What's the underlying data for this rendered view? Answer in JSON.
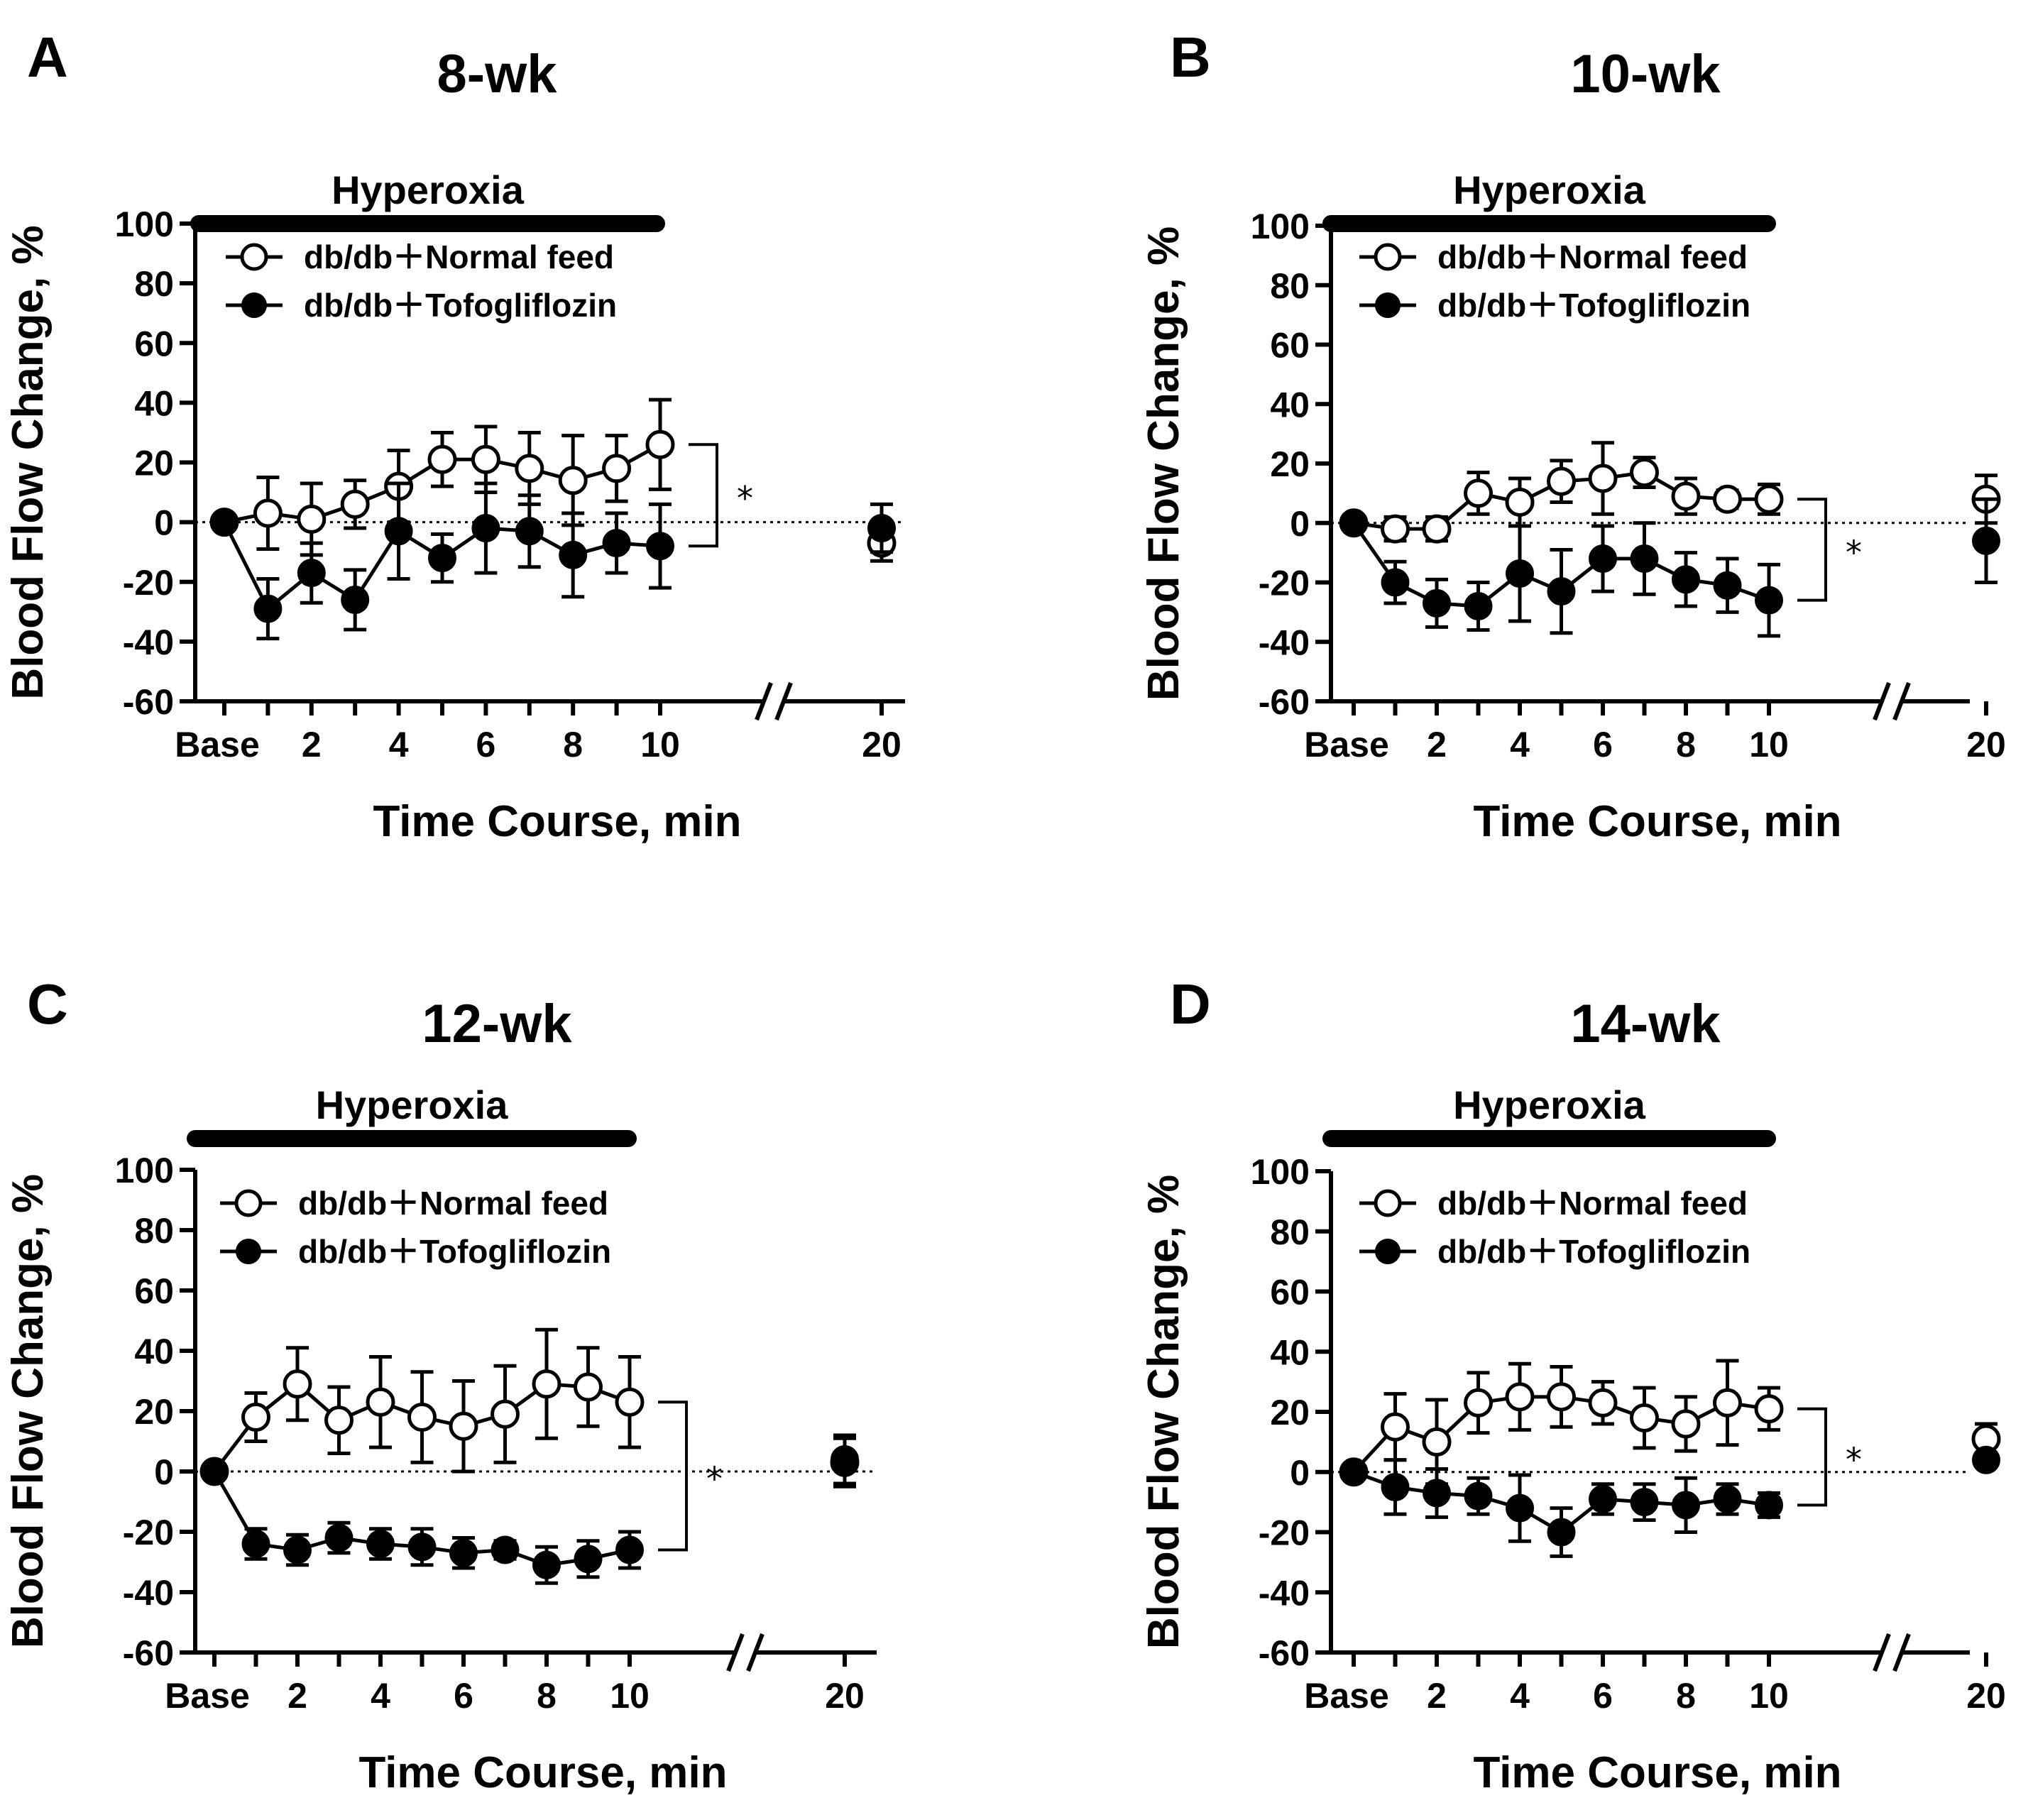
{
  "chart_data": [
    {
      "type": "line",
      "panel": "A",
      "title": "8-wk",
      "band_label": "Hyperoxia",
      "xlabel": "Time Course, min",
      "ylabel": "Blood Flow Change, %",
      "ylim": [
        -60,
        100
      ],
      "yticks": [
        100,
        80,
        60,
        40,
        20,
        0,
        -20,
        -40,
        -60
      ],
      "xtick_labels": [
        "Base",
        "2",
        "4",
        "6",
        "8",
        "10",
        "20"
      ],
      "x": [
        "Base",
        1,
        2,
        3,
        4,
        5,
        6,
        7,
        8,
        9,
        10,
        20
      ],
      "significance": "*",
      "series": [
        {
          "name": "db/db＋Normal feed",
          "marker": "open",
          "values": [
            0,
            3,
            1,
            6,
            12,
            21,
            21,
            18,
            14,
            18,
            26,
            -7
          ],
          "errors": [
            0,
            12,
            12,
            8,
            12,
            9,
            11,
            12,
            15,
            11,
            15,
            6
          ]
        },
        {
          "name": "db/db＋Tofogliflozin",
          "marker": "filled",
          "values": [
            0,
            -29,
            -17,
            -26,
            -3,
            -12,
            -2,
            -3,
            -11,
            -7,
            -8,
            -2
          ],
          "errors": [
            0,
            10,
            10,
            10,
            16,
            8,
            15,
            12,
            14,
            10,
            14,
            8
          ]
        }
      ]
    },
    {
      "type": "line",
      "panel": "B",
      "title": "10-wk",
      "band_label": "Hyperoxia",
      "xlabel": "Time Course, min",
      "ylabel": "Blood Flow Change, %",
      "ylim": [
        -60,
        100
      ],
      "yticks": [
        100,
        80,
        60,
        40,
        20,
        0,
        -20,
        -40,
        -60
      ],
      "xtick_labels": [
        "Base",
        "2",
        "4",
        "6",
        "8",
        "10",
        "20"
      ],
      "x": [
        "Base",
        1,
        2,
        3,
        4,
        5,
        6,
        7,
        8,
        9,
        10,
        20
      ],
      "significance": "*",
      "series": [
        {
          "name": "db/db＋Normal feed",
          "marker": "open",
          "values": [
            0,
            -2,
            -2,
            10,
            7,
            14,
            15,
            17,
            9,
            8,
            8,
            8
          ],
          "errors": [
            0,
            4,
            4,
            7,
            8,
            7,
            12,
            5,
            6,
            3,
            5,
            8
          ]
        },
        {
          "name": "db/db＋Tofogliflozin",
          "marker": "filled",
          "values": [
            0,
            -20,
            -27,
            -28,
            -17,
            -23,
            -12,
            -12,
            -19,
            -21,
            -26,
            -6
          ],
          "errors": [
            0,
            7,
            8,
            8,
            16,
            14,
            11,
            12,
            9,
            9,
            12,
            14
          ]
        }
      ]
    },
    {
      "type": "line",
      "panel": "C",
      "title": "12-wk",
      "band_label": "Hyperoxia",
      "xlabel": "Time Course, min",
      "ylabel": "Blood Flow Change, %",
      "ylim": [
        -60,
        100
      ],
      "yticks": [
        100,
        80,
        60,
        40,
        20,
        0,
        -20,
        -40,
        -60
      ],
      "xtick_labels": [
        "Base",
        "2",
        "4",
        "6",
        "8",
        "10",
        "20"
      ],
      "x": [
        "Base",
        1,
        2,
        3,
        4,
        5,
        6,
        7,
        8,
        9,
        10,
        20
      ],
      "significance": "*",
      "series": [
        {
          "name": "db/db＋Normal feed",
          "marker": "open",
          "values": [
            0,
            18,
            29,
            17,
            23,
            18,
            15,
            19,
            29,
            28,
            23,
            3
          ],
          "errors": [
            0,
            8,
            12,
            11,
            15,
            15,
            15,
            16,
            18,
            13,
            15,
            8
          ]
        },
        {
          "name": "db/db＋Tofogliflozin",
          "marker": "filled",
          "values": [
            0,
            -24,
            -26,
            -22,
            -24,
            -25,
            -27,
            -26,
            -31,
            -29,
            -26,
            4
          ],
          "errors": [
            0,
            5,
            5,
            5,
            5,
            6,
            5,
            3,
            6,
            6,
            6,
            8
          ]
        }
      ]
    },
    {
      "type": "line",
      "panel": "D",
      "title": "14-wk",
      "band_label": "Hyperoxia",
      "xlabel": "Time Course, min",
      "ylabel": "Blood Flow Change, %",
      "ylim": [
        -60,
        100
      ],
      "yticks": [
        100,
        80,
        60,
        40,
        20,
        0,
        -20,
        -40,
        -60
      ],
      "xtick_labels": [
        "Base",
        "2",
        "4",
        "6",
        "8",
        "10",
        "20"
      ],
      "x": [
        "Base",
        1,
        2,
        3,
        4,
        5,
        6,
        7,
        8,
        9,
        10,
        20
      ],
      "significance": "*",
      "series": [
        {
          "name": "db/db＋Normal feed",
          "marker": "open",
          "values": [
            0,
            15,
            10,
            23,
            25,
            25,
            23,
            18,
            16,
            23,
            21,
            11
          ],
          "errors": [
            0,
            11,
            14,
            10,
            11,
            10,
            7,
            10,
            9,
            14,
            7,
            5
          ]
        },
        {
          "name": "db/db＋Tofogliflozin",
          "marker": "filled",
          "values": [
            0,
            -5,
            -7,
            -8,
            -12,
            -20,
            -9,
            -10,
            -11,
            -9,
            -11,
            4
          ],
          "errors": [
            0,
            9,
            8,
            6,
            11,
            8,
            5,
            6,
            9,
            5,
            4,
            2
          ]
        }
      ]
    }
  ]
}
